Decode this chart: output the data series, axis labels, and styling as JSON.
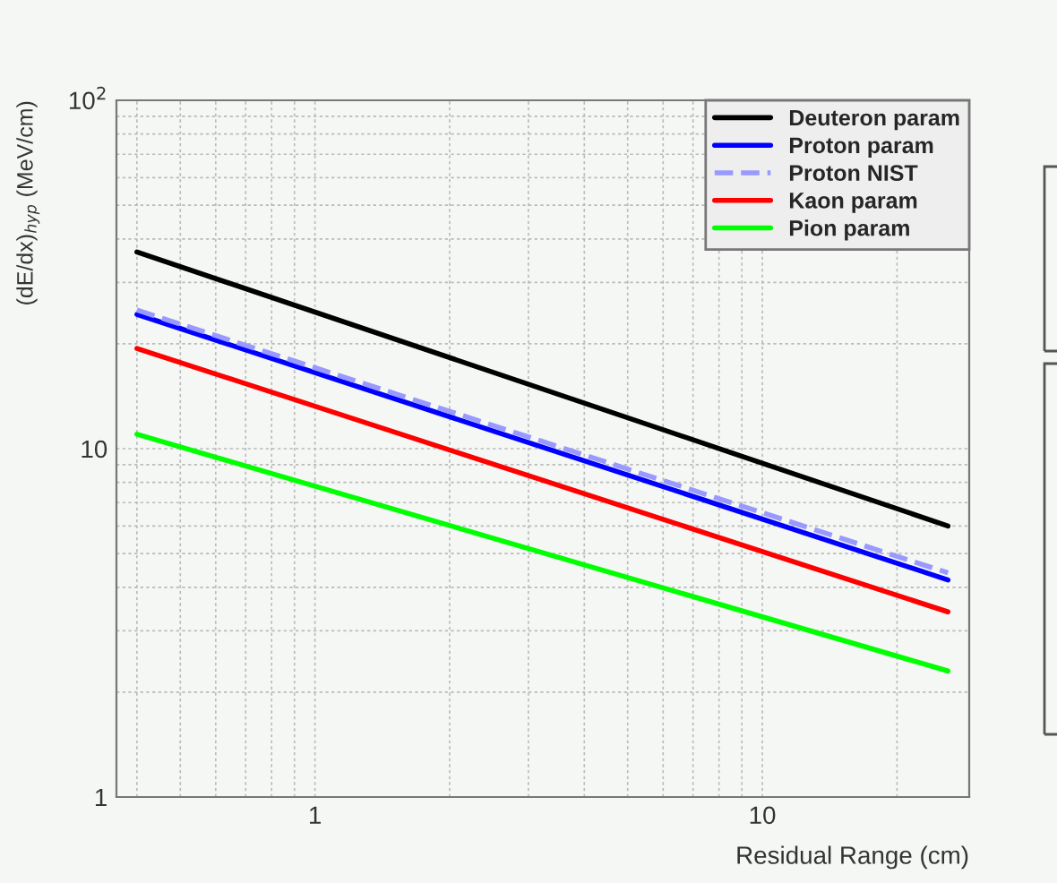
{
  "chart_data": {
    "type": "line",
    "xlabel": "Residual Range (cm)",
    "ylabel": "(dE/dx)$_{hyp}$ (MeV/cm)",
    "log": "xy",
    "xlim": [
      0.36,
      29
    ],
    "ylim": [
      1,
      100
    ],
    "xticks": [
      1,
      10
    ],
    "yticks": [
      1,
      10,
      {
        "value": 100,
        "label": "10$^{2}$"
      }
    ],
    "grid": true,
    "legend": "top right",
    "marker": "none",
    "x": [
      0.4,
      26
    ],
    "series": [
      {
        "name": "Deuteron param",
        "color": "#000000",
        "values": [
          36.7,
          6.0
        ],
        "line_style": "solid"
      },
      {
        "name": "Proton param",
        "color": "#0000ff",
        "values": [
          24.3,
          4.2
        ],
        "line_style": "solid"
      },
      {
        "name": "Proton NIST",
        "color": "#9999ff",
        "values": [
          25,
          4.4
        ],
        "line_style": "dashed"
      },
      {
        "name": "Kaon param",
        "color": "#ff0000",
        "values": [
          19.4,
          3.4
        ],
        "line_style": "solid"
      },
      {
        "name": "Pion param",
        "color": "#00ff00",
        "values": [
          11,
          2.3
        ],
        "line_style": "solid"
      }
    ]
  }
}
